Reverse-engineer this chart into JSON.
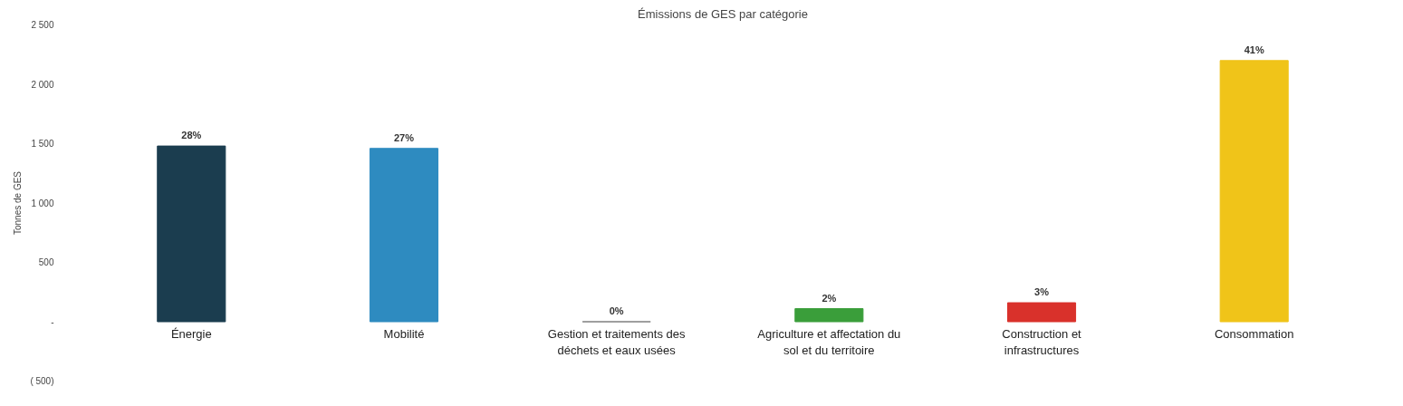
{
  "chart_data": {
    "type": "bar",
    "title": "Émissions de GES par catégorie",
    "ylabel": "Tonnes de GES",
    "categories": [
      "Énergie",
      "Mobilité",
      "Gestion et traitements des déchets et eaux usées",
      "Agriculture et affectation du sol et du territoire",
      "Construction et infrastructures",
      "Consommation"
    ],
    "values": [
      1480,
      1460,
      0,
      110,
      160,
      2200
    ],
    "colors": [
      "#1b3d4f",
      "#2e8bc0",
      "#7f7f7f",
      "#3a9e3a",
      "#d9312b",
      "#f0c419"
    ],
    "annotations": [
      {
        "text": "28%",
        "x": "Énergie",
        "y": 1480
      },
      {
        "text": "27%",
        "x": "Mobilité",
        "y": 1460
      },
      {
        "text": "0%",
        "x": "Gestion et traitements des déchets et eaux usées",
        "y": 0
      },
      {
        "text": "2%",
        "x": "Agriculture et affectation du sol et du territoire",
        "y": 110
      },
      {
        "text": "3%",
        "x": "Construction et infrastructures",
        "y": 160
      },
      {
        "text": "41%",
        "x": "Consommation",
        "y": 2200
      }
    ],
    "ylim": [
      -500,
      2500
    ],
    "yticks": [
      {
        "value": -500,
        "label": "( 500)"
      },
      {
        "value": 0,
        "label": "-"
      },
      {
        "value": 500,
        "label": "500"
      },
      {
        "value": 1000,
        "label": "1 000"
      },
      {
        "value": 1500,
        "label": "1 500"
      },
      {
        "value": 2000,
        "label": "2 000"
      },
      {
        "value": 2500,
        "label": "2 500"
      }
    ],
    "grid": false
  }
}
